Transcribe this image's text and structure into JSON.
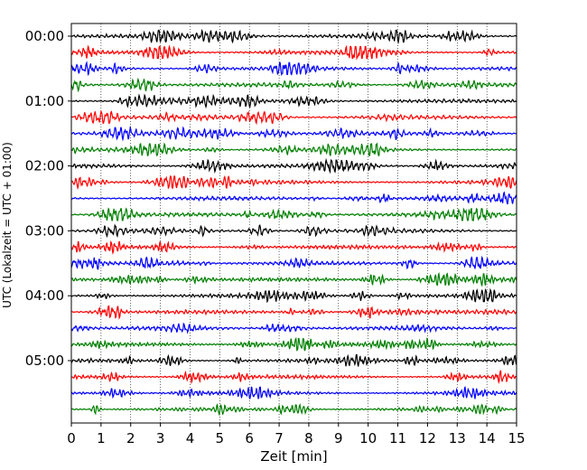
{
  "chart_data": {
    "type": "line",
    "title": "",
    "xlabel": "Zeit  [min]",
    "ylabel": "UTC (Lokalzeit = UTC + 01:00)",
    "xlim": [
      0,
      15
    ],
    "x_ticks": [
      "0",
      "1",
      "2",
      "3",
      "4",
      "5",
      "6",
      "7",
      "8",
      "9",
      "10",
      "11",
      "12",
      "13",
      "14",
      "15"
    ],
    "y_tick_labels": [
      "00:00",
      "01:00",
      "02:00",
      "03:00",
      "04:00",
      "05:00"
    ],
    "y_ticks_row_index": [
      0,
      4,
      8,
      12,
      16,
      20
    ],
    "row_interval_minutes": 15,
    "row_count": 24,
    "trace_colors": [
      "#000000",
      "#ff0000",
      "#0000ff",
      "#008000"
    ],
    "grid": "vertical dotted lines at each minute",
    "legend": "none"
  }
}
